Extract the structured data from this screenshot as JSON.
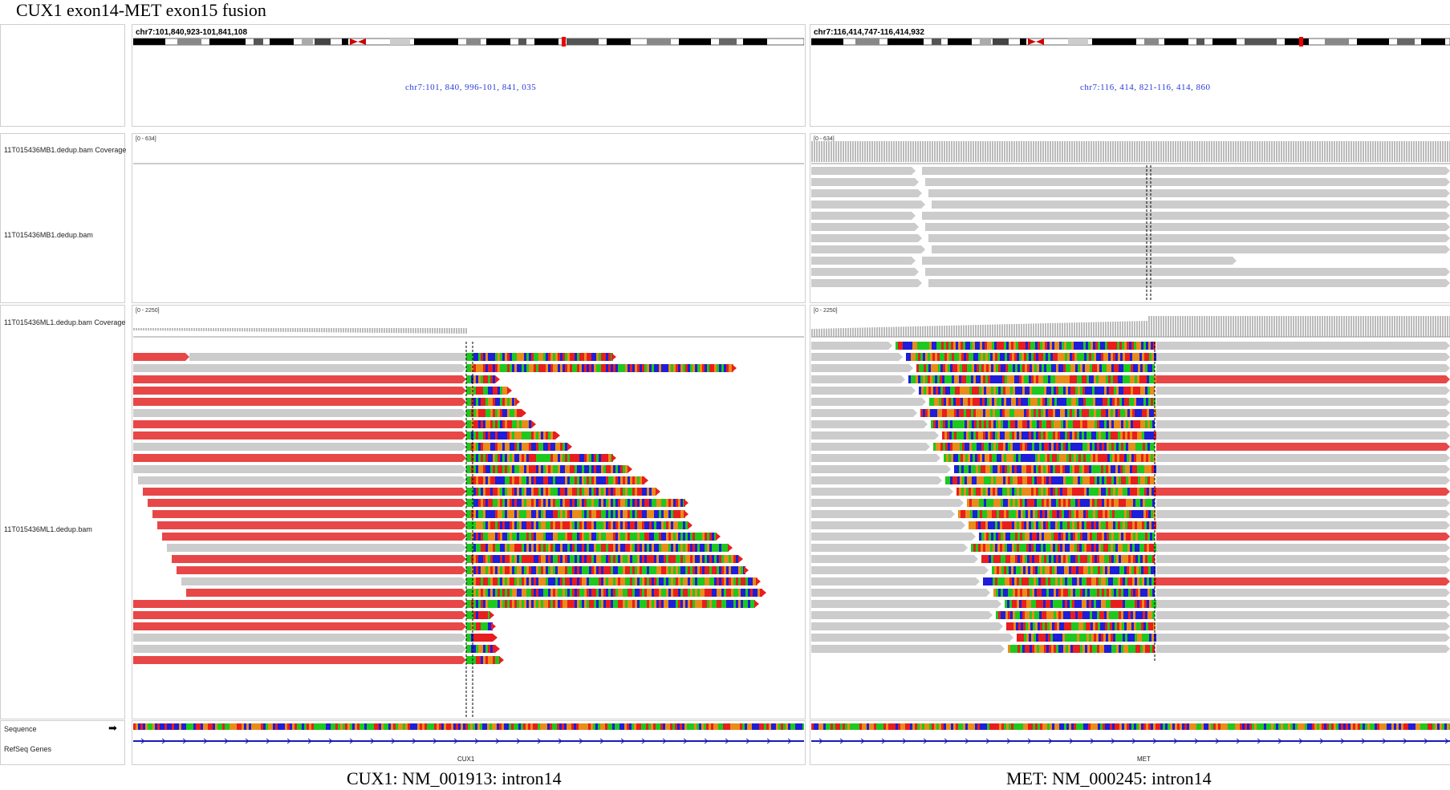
{
  "figure_title": "CUX1 exon14-MET exon15 fusion",
  "track_labels": {
    "mb1_coverage": "11T015436MB1.dedup.bam Coverage",
    "mb1_reads": "11T015436MB1.dedup.bam",
    "ml1_coverage": "11T015436ML1.dedup.bam Coverage",
    "ml1_reads": "11T015436ML1.dedup.bam",
    "sequence": "Sequence",
    "refseq": "RefSeq Genes"
  },
  "left_panel": {
    "region": "chr7:101,840,923-101,841,108",
    "locus": "chr7:101, 840, 996-101, 841, 035",
    "mb1_range": "[0 - 634]",
    "ml1_range": "[0 - 2250]",
    "gene": "CUX1",
    "caption": "CUX1: NM_001913: intron14"
  },
  "right_panel": {
    "region": "chr7:116,414,747-116,414,932",
    "locus": "chr7:116, 414, 821-116, 414, 860",
    "mb1_range": "[0 - 634]",
    "ml1_range": "[0 - 2250]",
    "gene": "MET",
    "caption": "MET: NM_000245: intron14"
  },
  "colors": {
    "read_gray": "#cccccc",
    "read_red": "#e84747",
    "base_A": "#1ec81e",
    "base_C": "#1e1ed8",
    "base_G": "#e88c1a",
    "base_T": "#e81e1e",
    "gene_line": "#1a1ab8",
    "locus_text": "#2a3bd8"
  },
  "icons": {
    "sequence_strand": "arrow-right-icon"
  }
}
